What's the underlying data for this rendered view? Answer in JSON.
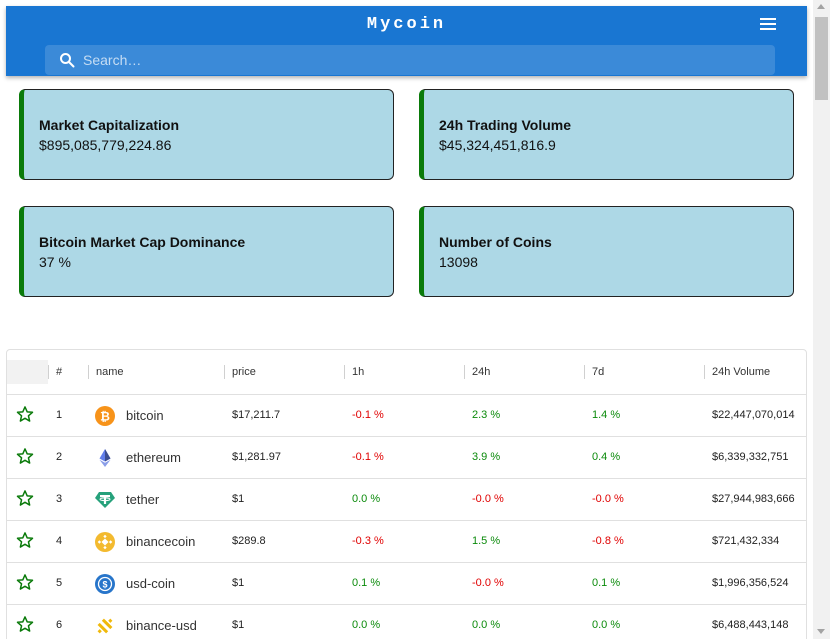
{
  "appbar": {
    "title": "Mycoin",
    "search_placeholder": "Search…",
    "search_value": ""
  },
  "stats": [
    {
      "label": "Market Capitalization",
      "value": "$895,085,779,224.86"
    },
    {
      "label": "24h Trading Volume",
      "value": "$45,324,451,816.9"
    },
    {
      "label": "Bitcoin Market Cap Dominance",
      "value": "37 %"
    },
    {
      "label": "Number of Coins",
      "value": "13098"
    }
  ],
  "table": {
    "columns": [
      "",
      "#",
      "name",
      "price",
      "1h",
      "24h",
      "7d",
      "24h Volume"
    ],
    "rows": [
      {
        "rank": "1",
        "name": "bitcoin",
        "icon": "bitcoin-icon",
        "price": "$17,211.7",
        "h1": "-0.1 %",
        "h24": "2.3 %",
        "d7": "1.4 %",
        "volume": "$22,447,070,014"
      },
      {
        "rank": "2",
        "name": "ethereum",
        "icon": "ethereum-icon",
        "price": "$1,281.97",
        "h1": "-0.1 %",
        "h24": "3.9 %",
        "d7": "0.4 %",
        "volume": "$6,339,332,751"
      },
      {
        "rank": "3",
        "name": "tether",
        "icon": "tether-icon",
        "price": "$1",
        "h1": "0.0 %",
        "h24": "-0.0 %",
        "d7": "-0.0 %",
        "volume": "$27,944,983,666"
      },
      {
        "rank": "4",
        "name": "binancecoin",
        "icon": "binancecoin-icon",
        "price": "$289.8",
        "h1": "-0.3 %",
        "h24": "1.5 %",
        "d7": "-0.8 %",
        "volume": "$721,432,334"
      },
      {
        "rank": "5",
        "name": "usd-coin",
        "icon": "usd-coin-icon",
        "price": "$1",
        "h1": "0.1 %",
        "h24": "-0.0 %",
        "d7": "0.1 %",
        "volume": "$1,996,356,524"
      },
      {
        "rank": "6",
        "name": "binance-usd",
        "icon": "binance-usd-icon",
        "price": "$1",
        "h1": "0.0 %",
        "h24": "0.0 %",
        "d7": "0.0 %",
        "volume": "$6,488,443,148"
      }
    ]
  },
  "colors": {
    "appbar": "#1976d2",
    "card_bg": "#add8e6",
    "card_accent": "#0a7a0a",
    "positive": "#0a8a0a",
    "negative": "#e00000"
  }
}
